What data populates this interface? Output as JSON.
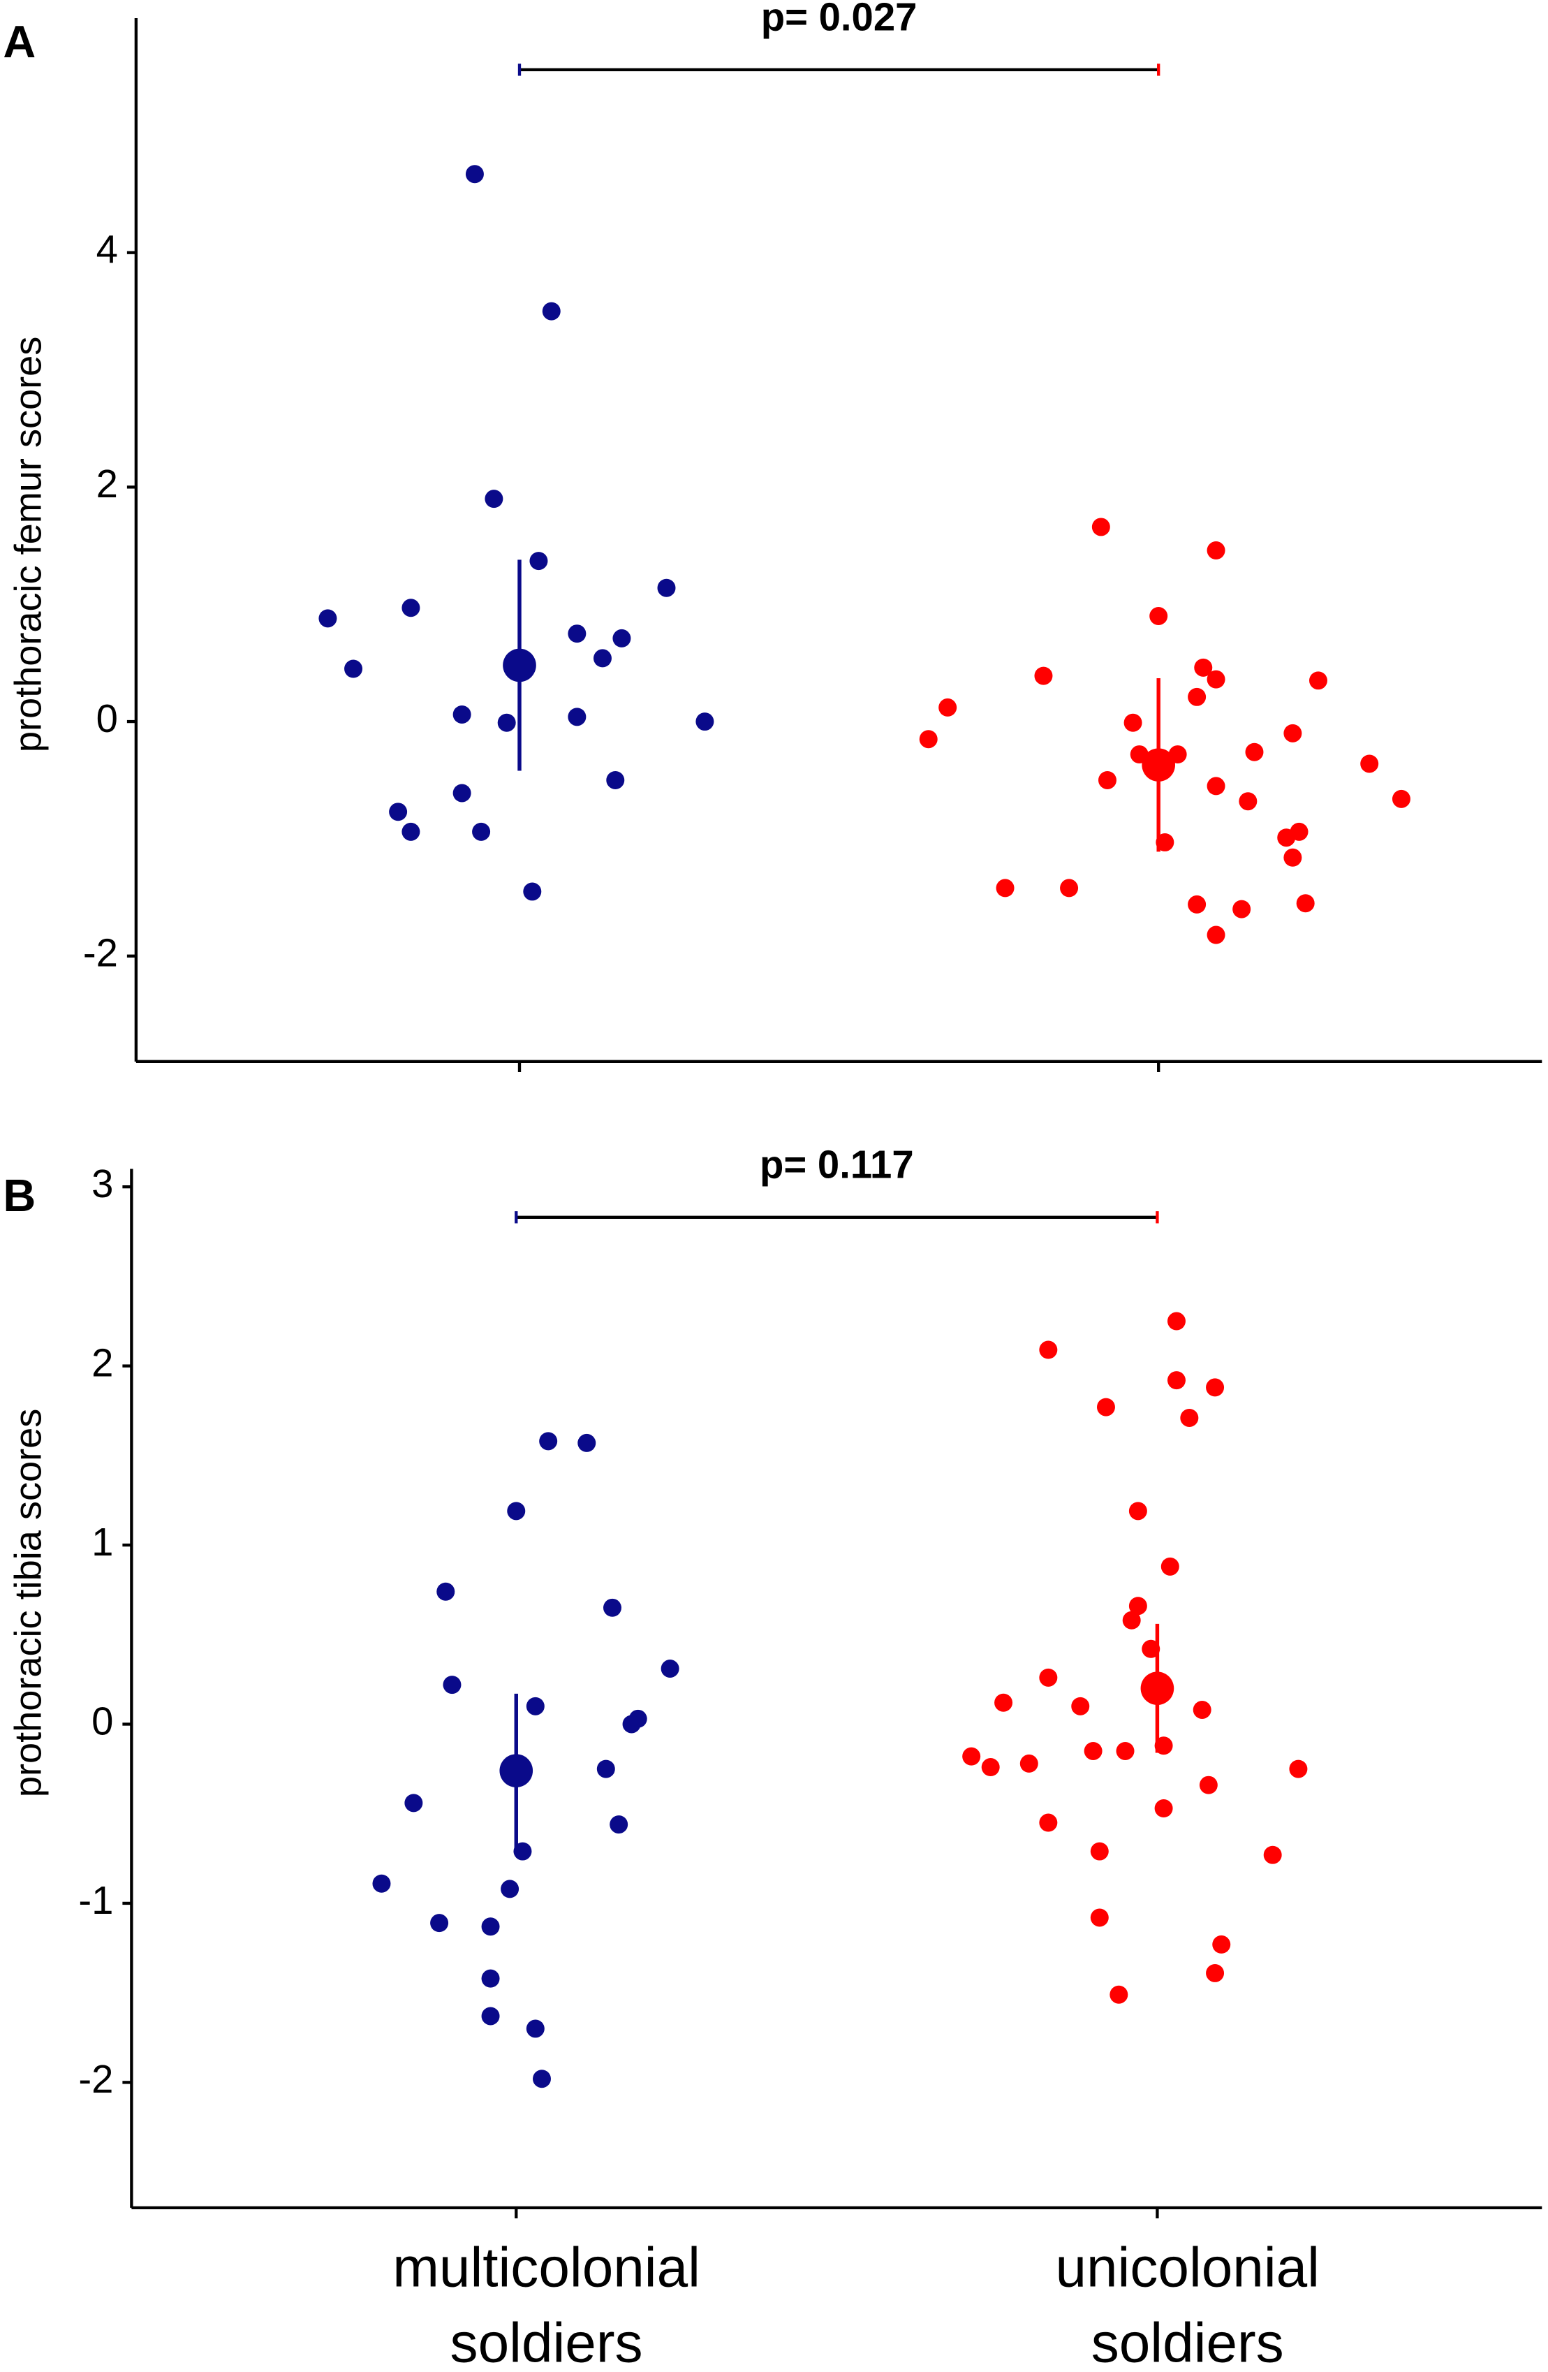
{
  "chart_data": [
    {
      "type": "scatter",
      "label": "A",
      "ylabel": "prothoracic femur scores",
      "annotation": "p= 0.027",
      "bracket_y": 5.56,
      "xlim": [
        0.4,
        2.6
      ],
      "xticks": [
        1,
        2
      ],
      "ylim": [
        -2.9,
        6
      ],
      "yticks": [
        -2,
        0,
        2,
        4
      ],
      "series": [
        {
          "color": "#0a0a8a",
          "x": [
            0.7,
            0.74,
            0.83,
            0.93,
            1.05,
            0.96,
            1.03,
            1.23,
            1.09,
            1.16,
            1.13,
            0.91,
            0.98,
            1.09,
            1.29,
            1.15,
            0.81,
            0.83,
            0.91,
            0.94,
            1.02
          ],
          "values": [
            0.88,
            0.45,
            0.97,
            4.67,
            3.5,
            1.9,
            1.37,
            1.14,
            0.75,
            0.71,
            0.54,
            0.06,
            -0.01,
            0.04,
            0.0,
            -0.5,
            -0.77,
            -0.94,
            -0.61,
            -0.94,
            -1.45
          ],
          "mean": 0.48,
          "error": 0.9
        },
        {
          "color": "#ff0000",
          "x": [
            1.91,
            2.09,
            2.0,
            1.82,
            2.07,
            2.09,
            2.06,
            2.25,
            1.67,
            1.64,
            1.96,
            1.97,
            2.03,
            2.21,
            2.15,
            1.92,
            2.09,
            2.33,
            2.38,
            2.14,
            2.01,
            2.22,
            2.2,
            2.21,
            1.76,
            1.86,
            2.06,
            2.13,
            2.23,
            2.09
          ],
          "values": [
            1.66,
            1.46,
            0.9,
            0.39,
            0.46,
            0.36,
            0.21,
            0.35,
            0.12,
            -0.15,
            -0.01,
            -0.28,
            -0.28,
            -0.1,
            -0.26,
            -0.5,
            -0.55,
            -0.36,
            -0.66,
            -0.68,
            -1.03,
            -0.94,
            -0.99,
            -1.16,
            -1.42,
            -1.42,
            -1.56,
            -1.6,
            -1.55,
            -1.82
          ],
          "mean": -0.37,
          "error": 0.74
        }
      ]
    },
    {
      "type": "scatter",
      "label": "B",
      "ylabel": "prothoracic tibia scores",
      "annotation": "p= 0.117",
      "bracket_y": 2.83,
      "categories": [
        "multicolonial soldiers",
        "unicolonial soldiers"
      ],
      "xlim": [
        0.4,
        2.6
      ],
      "xticks": [
        1,
        2
      ],
      "ylim": [
        -2.7,
        3.1
      ],
      "yticks": [
        -2,
        -1,
        0,
        1,
        2,
        3
      ],
      "series": [
        {
          "color": "#0a0a8a",
          "x": [
            1.05,
            1.11,
            1.0,
            0.89,
            1.15,
            1.24,
            0.9,
            1.03,
            1.19,
            1.18,
            1.14,
            0.84,
            1.16,
            1.01,
            0.79,
            0.99,
            0.88,
            0.96,
            0.96,
            0.96,
            1.03,
            1.04
          ],
          "values": [
            1.58,
            1.57,
            1.19,
            0.74,
            0.65,
            0.31,
            0.22,
            0.1,
            0.03,
            0.0,
            -0.25,
            -0.44,
            -0.56,
            -0.71,
            -0.89,
            -0.92,
            -1.11,
            -1.13,
            -1.42,
            -1.63,
            -1.7,
            -1.98
          ],
          "mean": -0.26,
          "error": 0.43
        },
        {
          "color": "#ff0000",
          "x": [
            2.03,
            1.83,
            2.03,
            2.09,
            1.92,
            2.05,
            1.97,
            2.02,
            1.97,
            1.96,
            1.99,
            1.83,
            1.76,
            1.88,
            2.07,
            1.71,
            1.74,
            1.8,
            1.9,
            1.95,
            2.01,
            2.08,
            2.22,
            2.01,
            1.83,
            1.91,
            2.18,
            1.91,
            2.1,
            2.09,
            1.94
          ],
          "values": [
            2.25,
            2.09,
            1.92,
            1.88,
            1.77,
            1.71,
            1.19,
            0.88,
            0.66,
            0.58,
            0.42,
            0.26,
            0.12,
            0.1,
            0.08,
            -0.18,
            -0.24,
            -0.22,
            -0.15,
            -0.15,
            -0.12,
            -0.34,
            -0.25,
            -0.47,
            -0.55,
            -0.71,
            -0.73,
            -1.08,
            -1.23,
            -1.39,
            -1.51
          ],
          "mean": 0.2,
          "error": 0.36
        }
      ]
    }
  ]
}
